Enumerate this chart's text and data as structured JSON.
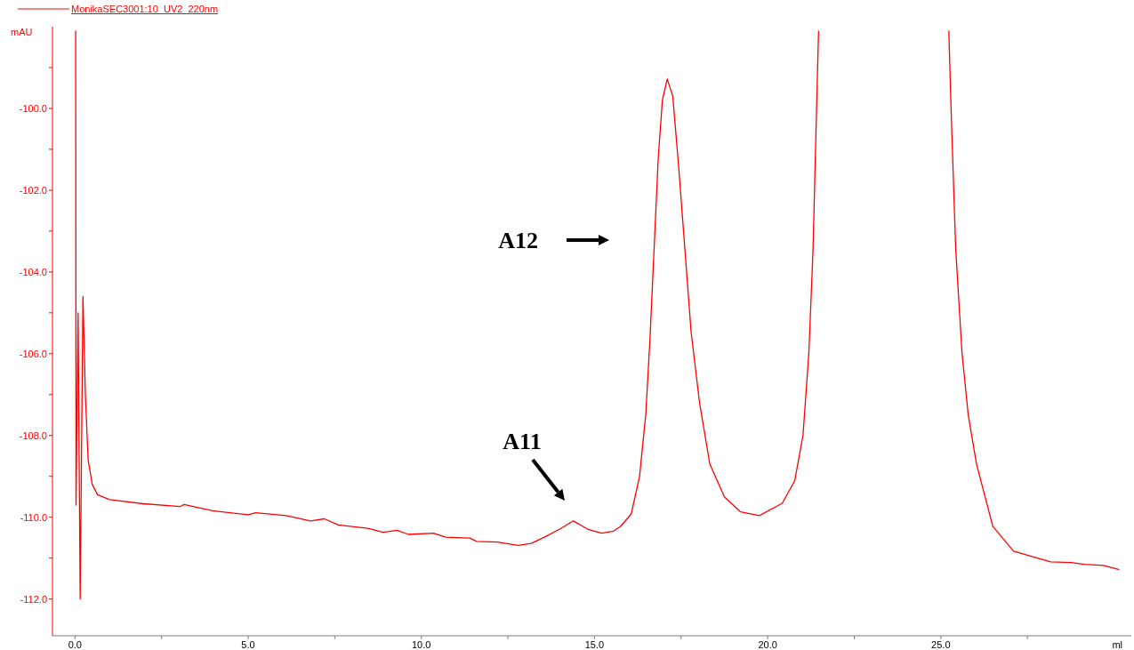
{
  "chart_data": {
    "type": "line",
    "xlabel": "ml",
    "ylabel": "mAU",
    "legend": "top left",
    "grid": false,
    "marker": "none",
    "line_style": "solid",
    "xlim": [
      -0.65,
      30.5
    ],
    "ylim": [
      -112.9,
      -98.0
    ],
    "xticks": [
      {
        "value": 0,
        "label": "0.0"
      },
      {
        "value": 2.5,
        "label": null
      },
      {
        "value": 5,
        "label": "5.0"
      },
      {
        "value": 7.5,
        "label": null
      },
      {
        "value": 10,
        "label": "10.0"
      },
      {
        "value": 12.5,
        "label": null
      },
      {
        "value": 15,
        "label": "15.0"
      },
      {
        "value": 17.5,
        "label": null
      },
      {
        "value": 20,
        "label": "20.0"
      },
      {
        "value": 22.5,
        "label": null
      },
      {
        "value": 25,
        "label": "25.0"
      },
      {
        "value": 27.5,
        "label": null
      }
    ],
    "yticks": [
      {
        "value": -99,
        "label": null
      },
      {
        "value": -100,
        "label": "-100.0"
      },
      {
        "value": -101,
        "label": null
      },
      {
        "value": -102,
        "label": "-102.0"
      },
      {
        "value": -103,
        "label": null
      },
      {
        "value": -104,
        "label": "-104.0"
      },
      {
        "value": -105,
        "label": null
      },
      {
        "value": -106,
        "label": "-106.0"
      },
      {
        "value": -107,
        "label": null
      },
      {
        "value": -108,
        "label": "-108.0"
      },
      {
        "value": -109,
        "label": null
      },
      {
        "value": -110,
        "label": "-110.0"
      },
      {
        "value": -111,
        "label": null
      },
      {
        "value": -112,
        "label": "-112.0"
      }
    ],
    "series": [
      {
        "name": "MonikaSEC3001:10_UV2_220nm",
        "color": "#ff0000",
        "x": [
          0.02,
          0.03,
          0.09,
          0.15,
          0.23,
          0.3,
          0.38,
          0.5,
          0.65,
          1.0,
          1.97,
          3.03,
          3.15,
          3.97,
          5.0,
          5.22,
          6.1,
          6.8,
          7.2,
          7.6,
          8.45,
          8.9,
          9.3,
          9.63,
          10.35,
          10.7,
          11.4,
          11.6,
          12.2,
          12.8,
          13.17,
          13.5,
          14.0,
          14.39,
          14.8,
          15.2,
          15.55,
          15.76,
          16.06,
          16.3,
          16.48,
          16.6,
          16.72,
          16.84,
          16.96,
          17.1,
          17.26,
          17.43,
          17.61,
          17.79,
          18.03,
          18.33,
          18.75,
          19.22,
          19.76,
          20.42,
          20.78,
          21.02,
          21.19,
          21.31,
          21.4,
          21.47,
          23.3,
          25.23,
          25.31,
          25.43,
          25.61,
          25.79,
          26.03,
          26.5,
          27.1,
          27.7,
          28.17,
          28.77,
          29.13,
          29.7,
          30.15
        ],
        "values": [
          -98.1,
          -109.7,
          -105.0,
          -112.0,
          -104.6,
          -107.0,
          -108.6,
          -109.2,
          -109.45,
          -109.57,
          -109.67,
          -109.74,
          -109.69,
          -109.84,
          -109.94,
          -109.89,
          -109.96,
          -110.09,
          -110.04,
          -110.19,
          -110.27,
          -110.37,
          -110.32,
          -110.42,
          -110.39,
          -110.49,
          -110.51,
          -110.59,
          -110.61,
          -110.69,
          -110.64,
          -110.51,
          -110.29,
          -110.09,
          -110.29,
          -110.39,
          -110.34,
          -110.22,
          -109.92,
          -109.01,
          -107.49,
          -105.67,
          -103.45,
          -101.22,
          -99.8,
          -99.28,
          -99.7,
          -101.42,
          -103.45,
          -105.47,
          -107.18,
          -108.7,
          -109.5,
          -109.87,
          -109.96,
          -109.66,
          -109.11,
          -108.0,
          -105.97,
          -103.45,
          -100.41,
          -98.1,
          null,
          -98.1,
          -100.41,
          -103.45,
          -105.97,
          -107.49,
          -108.7,
          -110.22,
          -110.83,
          -110.98,
          -111.09,
          -111.11,
          -111.15,
          -111.18,
          -111.28
        ]
      }
    ],
    "annotations": [
      "A11",
      "A12"
    ]
  }
}
